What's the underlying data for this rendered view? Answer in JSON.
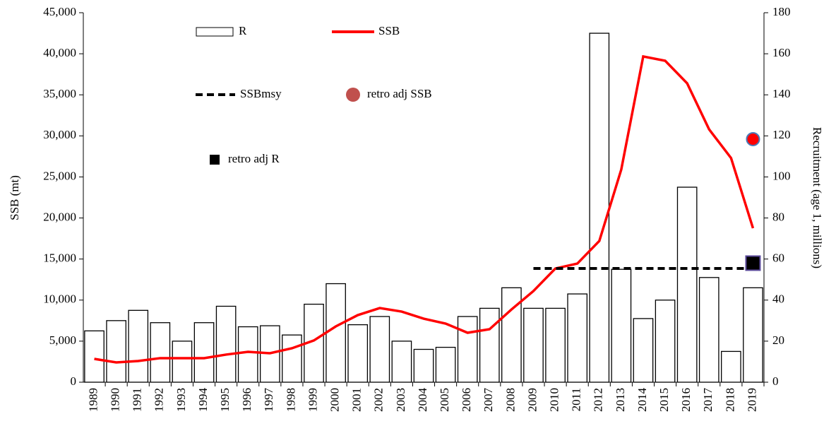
{
  "chart_data": {
    "type": "bar-line",
    "y_label": "SSB (mt)",
    "y2_label": "Recruitment (age 1, millions)",
    "categories": [
      "1989",
      "1990",
      "1991",
      "1992",
      "1993",
      "1994",
      "1995",
      "1996",
      "1997",
      "1998",
      "1999",
      "2000",
      "2001",
      "2002",
      "2003",
      "2004",
      "2005",
      "2006",
      "2007",
      "2008",
      "2009",
      "2010",
      "2011",
      "2012",
      "2013",
      "2014",
      "2015",
      "2016",
      "2017",
      "2018",
      "2019"
    ],
    "ylim": [
      0,
      45000
    ],
    "yticks": [
      0,
      {
        "value": 5000,
        "label": "5,000"
      },
      {
        "value": 10000,
        "label": "10,000"
      },
      {
        "value": 15000,
        "label": "15,000"
      },
      {
        "value": 20000,
        "label": "20,000"
      },
      {
        "value": 25000,
        "label": "25,000"
      },
      {
        "value": 30000,
        "label": "30,000"
      },
      {
        "value": 35000,
        "label": "35,000"
      },
      {
        "value": 40000,
        "label": "40,000"
      },
      {
        "value": 45000,
        "label": "45,000"
      }
    ],
    "y2lim": [
      0,
      180
    ],
    "y2ticks": [
      0,
      20,
      40,
      60,
      80,
      100,
      120,
      140,
      160,
      180
    ],
    "series": [
      {
        "name": "R",
        "type": "bar",
        "axis": "y2",
        "color": "#ffffff",
        "values": [
          25,
          30,
          35,
          29,
          20,
          29,
          37,
          27,
          27.5,
          23,
          38,
          48,
          28,
          32,
          20,
          16,
          17,
          32,
          36,
          46,
          36,
          36,
          43,
          170,
          55,
          31,
          40,
          95,
          51,
          15,
          46
        ]
      },
      {
        "name": "SSB",
        "type": "line",
        "color": "#ff0000",
        "values": [
          2840,
          2410,
          2580,
          2930,
          2930,
          2930,
          3360,
          3700,
          3530,
          4130,
          5080,
          6800,
          8170,
          9030,
          8600,
          7740,
          7140,
          6020,
          6450,
          8860,
          11100,
          13850,
          14450,
          17200,
          25900,
          39670,
          39150,
          36400,
          30800,
          27300,
          18760
        ]
      },
      {
        "name": "SSBmsy",
        "type": "dashed",
        "color": "#000000",
        "values": [
          null,
          null,
          null,
          null,
          null,
          null,
          null,
          null,
          null,
          null,
          null,
          null,
          null,
          null,
          null,
          null,
          null,
          null,
          null,
          null,
          13850,
          13850,
          13850,
          13850,
          13850,
          13850,
          13850,
          13850,
          13850,
          13850,
          13850
        ]
      },
      {
        "name": "retro adj SSB",
        "type": "circle",
        "color": "#ff0000",
        "values": [
          null,
          null,
          null,
          null,
          null,
          null,
          null,
          null,
          null,
          null,
          null,
          null,
          null,
          null,
          null,
          null,
          null,
          null,
          null,
          null,
          null,
          null,
          null,
          null,
          null,
          null,
          null,
          null,
          null,
          null,
          29600
        ]
      },
      {
        "name": "retro adj R",
        "type": "square",
        "axis": "y2",
        "color": "#000000",
        "values": [
          null,
          null,
          null,
          null,
          null,
          null,
          null,
          null,
          null,
          null,
          null,
          null,
          null,
          null,
          null,
          null,
          null,
          null,
          null,
          null,
          null,
          null,
          null,
          null,
          null,
          null,
          null,
          null,
          null,
          null,
          58
        ]
      }
    ]
  }
}
